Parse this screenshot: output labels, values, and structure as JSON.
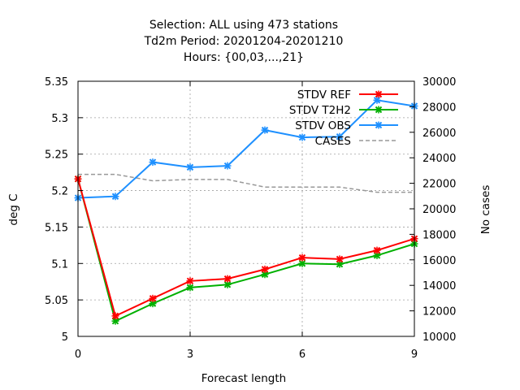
{
  "chart_data": {
    "type": "line",
    "title_lines": [
      "Selection: ALL using   473 stations",
      "Td2m   Period: 20201204-20201210",
      "Hours: {00,03,...,21}"
    ],
    "xlabel": "Forecast length",
    "ylabel": "deg C",
    "y2label": "No cases",
    "x_ticks": [
      0,
      3,
      6,
      9
    ],
    "xlim": [
      0,
      9
    ],
    "ylim": [
      5.0,
      5.35
    ],
    "y_ticks": [
      "5",
      "5.05",
      "5.1",
      "5.15",
      "5.2",
      "5.25",
      "5.3",
      "5.35"
    ],
    "y_tick_values": [
      5.0,
      5.05,
      5.1,
      5.15,
      5.2,
      5.25,
      5.3,
      5.35
    ],
    "y2lim": [
      10000,
      30000
    ],
    "y2_ticks": [
      "10000",
      "12000",
      "14000",
      "16000",
      "18000",
      "20000",
      "22000",
      "24000",
      "26000",
      "28000",
      "30000"
    ],
    "y2_tick_values": [
      10000,
      12000,
      14000,
      16000,
      18000,
      20000,
      22000,
      24000,
      26000,
      28000,
      30000
    ],
    "grid": true,
    "legend_position": "top-right",
    "x": [
      0,
      1,
      2,
      3,
      4,
      5,
      6,
      7,
      8,
      9
    ],
    "series": [
      {
        "name": "STDV REF",
        "color": "#ff0000",
        "axis": "y",
        "style": "line-points",
        "values": [
          5.216,
          5.028,
          5.052,
          5.076,
          5.079,
          5.092,
          5.108,
          5.106,
          5.118,
          5.134
        ]
      },
      {
        "name": "STDV T2H2",
        "color": "#00b000",
        "axis": "y",
        "style": "line-points",
        "values": [
          5.216,
          5.021,
          5.045,
          5.067,
          5.071,
          5.085,
          5.1,
          5.099,
          5.111,
          5.127
        ]
      },
      {
        "name": "STDV OBS",
        "color": "#1e90ff",
        "axis": "y",
        "style": "line-points",
        "values": [
          5.19,
          5.192,
          5.239,
          5.232,
          5.234,
          5.283,
          5.273,
          5.274,
          5.324,
          5.316
        ]
      },
      {
        "name": "CASES",
        "color": "#999999",
        "axis": "y2",
        "style": "dashed",
        "values": [
          22700,
          22700,
          22200,
          22300,
          22300,
          21700,
          21700,
          21700,
          21300,
          21300
        ]
      }
    ]
  }
}
